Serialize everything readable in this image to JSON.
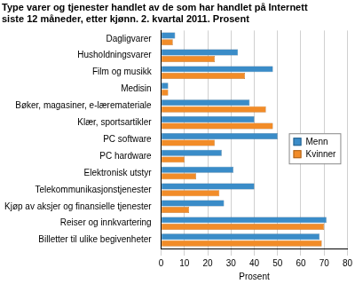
{
  "chart_data": {
    "type": "bar",
    "orientation": "horizontal",
    "title": [
      "Type varer og tjenester handlet av de som har handlet på Internett",
      "siste 12 måneder, etter kjønn. 2. kvartal 2011. Prosent"
    ],
    "x_label": "Prosent",
    "categories": [
      "Dagligvarer",
      "Husholdningsvarer",
      "Film og musikk",
      "Medisin",
      "Bøker, magasiner, e-læremateriale",
      "Klær, sportsartikler",
      "PC software",
      "PC hardware",
      "Elektronisk utstyr",
      "Telekommunikasjonstjenester",
      "Kjøp av aksjer og finansielle tjenester",
      "Reiser og innkvartering",
      "Billetter til ulike begivenheter"
    ],
    "series": [
      {
        "name": "Menn",
        "color": "#3a8cc8",
        "values": [
          6,
          33,
          48,
          3,
          38,
          40,
          50,
          26,
          31,
          40,
          27,
          71,
          68
        ]
      },
      {
        "name": "Kvinner",
        "color": "#f28c28",
        "values": [
          5,
          23,
          36,
          3,
          45,
          48,
          23,
          10,
          15,
          25,
          12,
          70,
          69
        ]
      }
    ],
    "xlim": [
      0,
      80
    ],
    "xticks": [
      0,
      10,
      20,
      30,
      40,
      50,
      60,
      70,
      80
    ],
    "grid": true,
    "legend": "right"
  }
}
